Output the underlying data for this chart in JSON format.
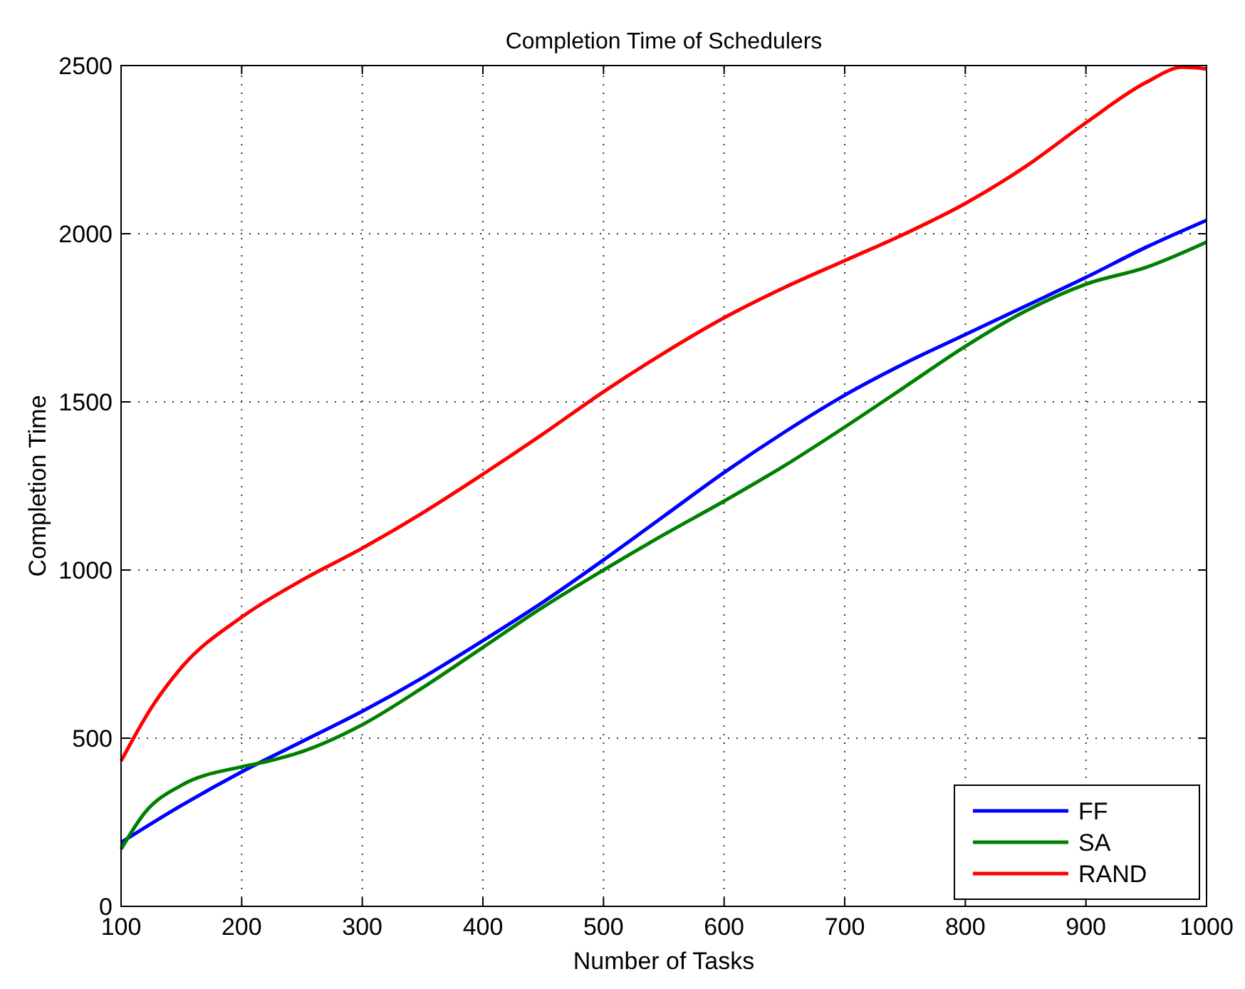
{
  "chart_data": {
    "type": "line",
    "title": "Completion Time of Schedulers",
    "xlabel": "Number of Tasks",
    "ylabel": "Completion Time",
    "xlim": [
      100,
      1000
    ],
    "xticks": [
      100,
      200,
      300,
      400,
      500,
      600,
      700,
      800,
      900,
      1000
    ],
    "ylim": [
      0,
      2500
    ],
    "yticks": [
      0,
      500,
      1000,
      1500,
      2000,
      2500
    ],
    "grid": true,
    "legend": "bottom right",
    "marker": "none",
    "line_style": "solid",
    "series": [
      {
        "name": "FF",
        "color": "#0000ff",
        "x": [
          100,
          150,
          200,
          250,
          300,
          350,
          400,
          450,
          500,
          550,
          600,
          650,
          700,
          750,
          800,
          850,
          900,
          950,
          1000
        ],
        "values": [
          190,
          300,
          400,
          490,
          580,
          680,
          790,
          905,
          1030,
          1160,
          1290,
          1410,
          1520,
          1615,
          1700,
          1785,
          1870,
          1960,
          2040
        ]
      },
      {
        "name": "SA",
        "color": "#008000",
        "x": [
          100,
          120,
          150,
          200,
          220,
          250,
          300,
          350,
          400,
          450,
          500,
          550,
          600,
          650,
          700,
          750,
          800,
          850,
          900,
          950,
          1000
        ],
        "values": [
          170,
          280,
          360,
          415,
          430,
          460,
          540,
          650,
          770,
          890,
          1000,
          1105,
          1205,
          1310,
          1425,
          1545,
          1665,
          1770,
          1850,
          1900,
          1975
        ]
      },
      {
        "name": "RAND",
        "color": "#ff0000",
        "x": [
          100,
          125,
          150,
          200,
          250,
          300,
          350,
          400,
          450,
          500,
          550,
          600,
          650,
          700,
          750,
          800,
          850,
          900,
          950,
          980,
          1000
        ],
        "values": [
          432,
          590,
          710,
          860,
          970,
          1065,
          1170,
          1285,
          1405,
          1530,
          1645,
          1750,
          1840,
          1920,
          2000,
          2090,
          2200,
          2330,
          2450,
          2495,
          2490
        ]
      }
    ]
  }
}
